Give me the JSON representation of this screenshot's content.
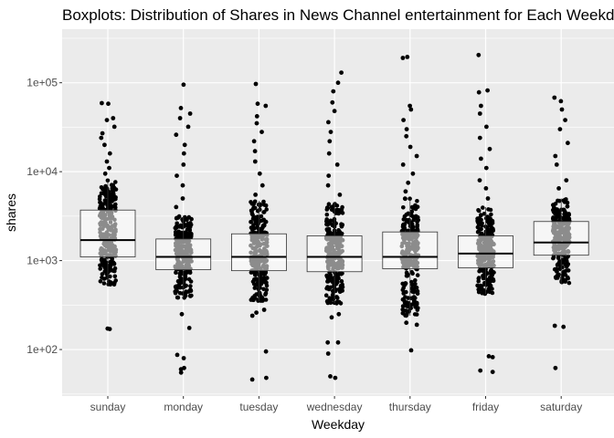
{
  "chart_data": {
    "type": "boxplot",
    "title": "Boxplots: Distribution of Shares in News Channel entertainment for Each Weekday",
    "xlabel": "Weekday",
    "ylabel": "shares",
    "y_scale": "log10",
    "ylim": [
      30,
      400000
    ],
    "y_ticks": [
      {
        "value": 100,
        "label": "1e+02"
      },
      {
        "value": 1000,
        "label": "1e+03"
      },
      {
        "value": 10000,
        "label": "1e+04"
      },
      {
        "value": 100000,
        "label": "1e+05"
      }
    ],
    "grid": true,
    "panel_background": "#ebebeb",
    "grid_color": "#ffffff",
    "point_color": "#000000",
    "box_fill": "#ffffff",
    "box_stroke": "#333333",
    "categories": [
      "sunday",
      "monday",
      "tuesday",
      "wednesday",
      "thursday",
      "friday",
      "saturday"
    ],
    "boxes": [
      {
        "category": "sunday",
        "q1": 1100,
        "median": 1700,
        "q3": 3700,
        "lower_whisker": 530,
        "upper_whisker": 8000
      },
      {
        "category": "monday",
        "q1": 790,
        "median": 1100,
        "q3": 1750,
        "lower_whisker": 380,
        "upper_whisker": 3200
      },
      {
        "category": "tuesday",
        "q1": 770,
        "median": 1100,
        "q3": 2000,
        "lower_whisker": 350,
        "upper_whisker": 4700
      },
      {
        "category": "wednesday",
        "q1": 750,
        "median": 1100,
        "q3": 1900,
        "lower_whisker": 330,
        "upper_whisker": 4500
      },
      {
        "category": "thursday",
        "q1": 810,
        "median": 1100,
        "q3": 2100,
        "lower_whisker": 240,
        "upper_whisker": 5000
      },
      {
        "category": "friday",
        "q1": 830,
        "median": 1200,
        "q3": 1900,
        "lower_whisker": 420,
        "upper_whisker": 4000
      },
      {
        "category": "saturday",
        "q1": 1150,
        "median": 1600,
        "q3": 2750,
        "lower_whisker": 550,
        "upper_whisker": 5000
      }
    ],
    "outliers": [
      {
        "category": "sunday",
        "values": [
          170,
          172,
          9500,
          11000,
          13000,
          16000,
          20000,
          24000,
          27000,
          32000,
          38000,
          40000,
          58000,
          59000
        ]
      },
      {
        "category": "monday",
        "values": [
          55,
          60,
          62,
          80,
          87,
          175,
          250,
          4000,
          5000,
          7000,
          9000,
          12000,
          16000,
          20000,
          26000,
          32000,
          40000,
          45000,
          52000,
          95000
        ]
      },
      {
        "category": "tuesday",
        "values": [
          46,
          48,
          95,
          240,
          260,
          280,
          5500,
          7000,
          9500,
          13000,
          17000,
          22000,
          28000,
          35000,
          42000,
          55000,
          58000,
          97000
        ]
      },
      {
        "category": "wednesday",
        "values": [
          48,
          50,
          90,
          120,
          120,
          230,
          250,
          5500,
          7000,
          9000,
          12000,
          16000,
          22000,
          28000,
          36000,
          48000,
          60000,
          80000,
          100000,
          130000
        ]
      },
      {
        "category": "thursday",
        "values": [
          98,
          190,
          200,
          6000,
          7500,
          9500,
          12000,
          15000,
          19000,
          25000,
          30000,
          38000,
          50000,
          55000,
          190000,
          195000
        ]
      },
      {
        "category": "friday",
        "values": [
          56,
          58,
          82,
          84,
          5000,
          6500,
          8000,
          11000,
          14000,
          18000,
          24000,
          32000,
          45000,
          55000,
          78000,
          82000,
          205000
        ]
      },
      {
        "category": "saturday",
        "values": [
          62,
          180,
          185,
          6500,
          8000,
          12000,
          15000,
          21000,
          30000,
          38000,
          50000,
          62000,
          68000
        ]
      }
    ]
  }
}
